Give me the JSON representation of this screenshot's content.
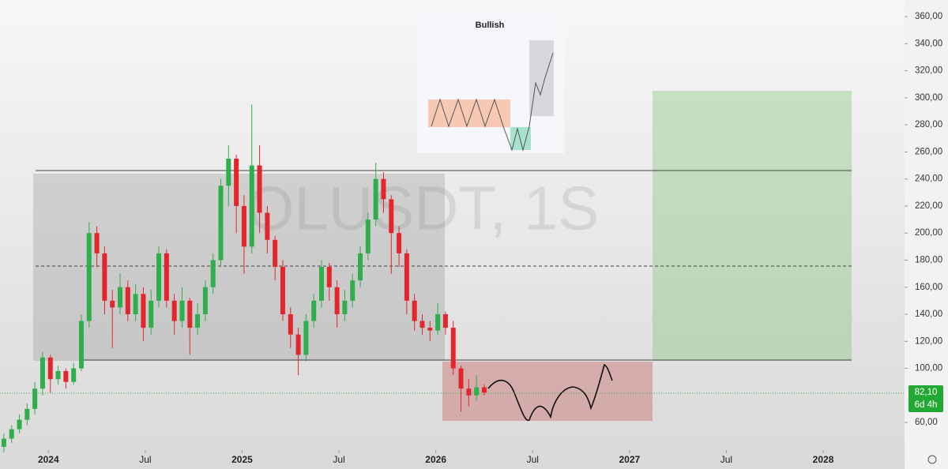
{
  "chart_data": {
    "type": "candlestick",
    "watermark": "OLUSDT, 1S",
    "annotation": "Bullish",
    "x": [
      2023.77,
      2023.81,
      2023.85,
      2023.89,
      2023.93,
      2023.97,
      2024.01,
      2024.05,
      2024.09,
      2024.13,
      2024.17,
      2024.21,
      2024.25,
      2024.29,
      2024.33,
      2024.37,
      2024.41,
      2024.45,
      2024.49,
      2024.53,
      2024.57,
      2024.61,
      2024.65,
      2024.69,
      2024.73,
      2024.77,
      2024.81,
      2024.85,
      2024.89,
      2024.93,
      2024.97,
      2025.01,
      2025.05,
      2025.09,
      2025.13,
      2025.17,
      2025.21,
      2025.25,
      2025.29,
      2025.33,
      2025.37,
      2025.41,
      2025.45,
      2025.49,
      2025.53,
      2025.57,
      2025.61,
      2025.65,
      2025.69,
      2025.73,
      2025.77,
      2025.81,
      2025.85,
      2025.89,
      2025.93,
      2025.97,
      2026.01,
      2026.05,
      2026.09,
      2026.13,
      2026.17,
      2026.21,
      2026.25
    ],
    "open": [
      42,
      48,
      55,
      62,
      70,
      85,
      108,
      92,
      98,
      90,
      100,
      135,
      200,
      185,
      150,
      145,
      160,
      140,
      155,
      130,
      150,
      185,
      150,
      135,
      150,
      130,
      140,
      160,
      180,
      235,
      255,
      220,
      190,
      250,
      215,
      195,
      175,
      140,
      125,
      110,
      135,
      150,
      175,
      160,
      140,
      150,
      165,
      185,
      210,
      240,
      225,
      200,
      185,
      150,
      135,
      130,
      128,
      140,
      130,
      100,
      85,
      80,
      86
    ],
    "high": [
      52,
      58,
      66,
      74,
      90,
      112,
      110,
      102,
      100,
      104,
      140,
      208,
      205,
      190,
      158,
      170,
      165,
      162,
      160,
      158,
      190,
      188,
      155,
      160,
      152,
      148,
      165,
      185,
      240,
      265,
      258,
      228,
      295,
      265,
      220,
      198,
      180,
      145,
      130,
      140,
      155,
      180,
      178,
      165,
      158,
      170,
      190,
      215,
      252,
      245,
      228,
      205,
      188,
      155,
      140,
      135,
      148,
      142,
      135,
      102,
      92,
      95,
      88
    ],
    "low": [
      38,
      45,
      52,
      58,
      66,
      80,
      82,
      88,
      85,
      88,
      98,
      130,
      175,
      140,
      115,
      140,
      135,
      135,
      120,
      125,
      145,
      145,
      125,
      130,
      110,
      125,
      135,
      155,
      175,
      220,
      200,
      170,
      185,
      200,
      185,
      165,
      135,
      115,
      95,
      105,
      130,
      145,
      150,
      130,
      135,
      145,
      160,
      180,
      205,
      215,
      170,
      175,
      140,
      128,
      125,
      120,
      125,
      125,
      95,
      68,
      72,
      76,
      80
    ],
    "close": [
      48,
      55,
      62,
      70,
      85,
      108,
      92,
      98,
      90,
      100,
      135,
      200,
      185,
      150,
      145,
      160,
      140,
      155,
      130,
      150,
      185,
      150,
      135,
      150,
      130,
      140,
      160,
      180,
      235,
      255,
      220,
      190,
      250,
      215,
      195,
      175,
      140,
      125,
      110,
      135,
      150,
      175,
      160,
      140,
      150,
      165,
      185,
      210,
      240,
      225,
      200,
      185,
      150,
      135,
      130,
      128,
      140,
      130,
      100,
      85,
      80,
      86,
      82.1
    ],
    "up_color": "#2fae4c",
    "down_color": "#e3262b",
    "xlim": [
      2023.75,
      2028.42
    ],
    "xticks": [
      2024,
      {
        "value": 2024.5,
        "label": "Jul"
      },
      2025,
      {
        "value": 2025.5,
        "label": "Jul"
      },
      2026,
      {
        "value": 2026.5,
        "label": "Jul"
      },
      2027,
      {
        "value": 2027.5,
        "label": "Jul"
      },
      2028
    ],
    "ylim": [
      39.6,
      372.3
    ],
    "yticks": [
      {
        "value": 60,
        "label": "60,00"
      },
      {
        "value": 100,
        "label": "100,00"
      },
      {
        "value": 120,
        "label": "120,00"
      },
      {
        "value": 140,
        "label": "140,00"
      },
      {
        "value": 160,
        "label": "160,00"
      },
      {
        "value": 180,
        "label": "180,00"
      },
      {
        "value": 200,
        "label": "200,00"
      },
      {
        "value": 220,
        "label": "220,00"
      },
      {
        "value": 240,
        "label": "240,00"
      },
      {
        "value": 260,
        "label": "260,00"
      },
      {
        "value": 280,
        "label": "280,00"
      },
      {
        "value": 300,
        "label": "300,00"
      },
      {
        "value": 320,
        "label": "320,00"
      },
      {
        "value": 340,
        "label": "340,00"
      },
      {
        "value": 360,
        "label": "360,00"
      }
    ],
    "last_price": {
      "value": 82.1,
      "label": "82,10"
    },
    "countdown": "6d 4h"
  }
}
